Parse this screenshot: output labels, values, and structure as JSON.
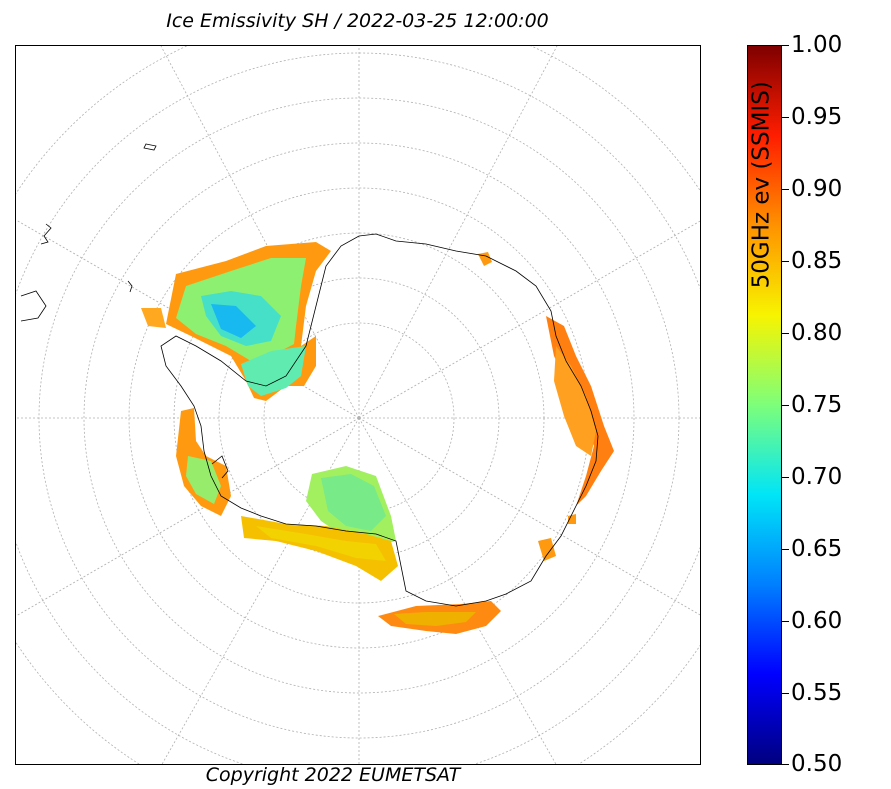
{
  "title": "Ice Emissivity SH / 2022-03-25 12:00:00",
  "copyright": "Copyright 2022 EUMETSAT",
  "colorbar": {
    "label": "50GHz ev (SSMIS)",
    "min": 0.5,
    "max": 1.0,
    "ticks": [
      "0.50",
      "0.55",
      "0.60",
      "0.65",
      "0.70",
      "0.75",
      "0.80",
      "0.85",
      "0.90",
      "0.95",
      "1.00"
    ],
    "colormap": "jet"
  },
  "map": {
    "projection": "south-polar-stereographic",
    "graticule": "dashed",
    "colors": {
      "high": "#ff7f00",
      "mid": "#e8d000",
      "low": "#50e8b0",
      "lowest": "#00a8f0",
      "coast": "#000000"
    }
  }
}
